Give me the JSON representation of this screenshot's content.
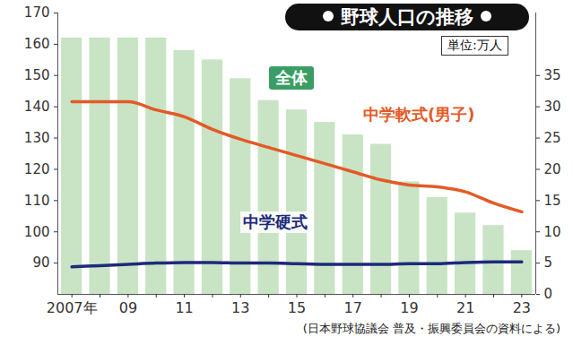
{
  "chart_data": {
    "type": "bar",
    "title": "野球人口の推移",
    "subtitle": "単位:万人",
    "source": "(日本野球協議会 普及・振興委員会の資料による)",
    "categories": [
      "2007年",
      null,
      "09",
      null,
      "11",
      null,
      "13",
      null,
      "15",
      null,
      "17",
      null,
      "19",
      null,
      "21",
      null,
      "23"
    ],
    "series": [
      {
        "name": "全体",
        "type": "bar",
        "color": "#c8e4c4",
        "values": [
          162,
          162,
          162,
          162,
          158,
          155,
          149,
          142,
          139,
          135,
          131,
          128,
          116,
          111,
          106,
          102,
          94
        ]
      },
      {
        "name": "中学軟式(男子)",
        "type": "line",
        "axis": "y2",
        "color": "#e45a26",
        "values": [
          30.8,
          30.8,
          30.8,
          29.5,
          28.4,
          26.4,
          24.8,
          23.5,
          22.2,
          20.9,
          19.6,
          18.3,
          17.5,
          17.2,
          16.4,
          14.6,
          13.2
        ]
      },
      {
        "name": "中学硬式",
        "type": "line",
        "axis": "y2",
        "color": "#1e2a7a",
        "values": [
          4.4,
          4.6,
          4.8,
          5.0,
          5.1,
          5.1,
          5.0,
          5.0,
          4.9,
          4.8,
          4.8,
          4.8,
          4.9,
          4.9,
          5.1,
          5.2,
          5.2
        ]
      }
    ],
    "ylim": [
      80,
      170
    ],
    "yticks": [
      90,
      100,
      110,
      120,
      130,
      140,
      150,
      160,
      170
    ],
    "y2lim": [
      0,
      45
    ],
    "y2ticks": [
      0,
      5,
      10,
      15,
      20,
      25,
      30,
      35
    ],
    "grid": false
  }
}
